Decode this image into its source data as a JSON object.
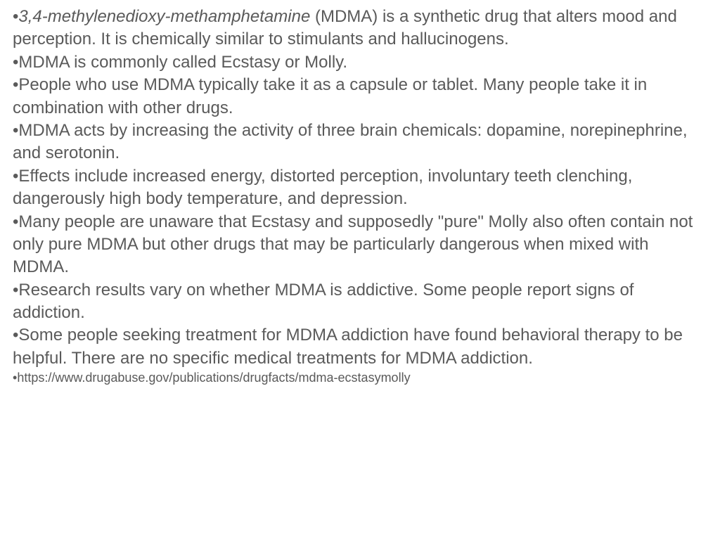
{
  "text_color": "#5a5a5a",
  "background_color": "#ffffff",
  "main_font_size": 24,
  "source_font_size": 18,
  "font_family": "Verdana, Geneva, sans-serif",
  "bullets": [
    {
      "italic_prefix": "3,4-methylenedioxy-methamphetamine",
      "rest": " (MDMA) is a synthetic drug that alters mood and perception. It is chemically similar to stimulants and hallucinogens."
    },
    {
      "text": "MDMA is commonly called Ecstasy or Molly."
    },
    {
      "text": "People who use MDMA typically take it as a capsule or tablet. Many people take it in combination with other drugs."
    },
    {
      "text": "MDMA acts by increasing the activity of three brain chemicals: dopamine, norepinephrine, and serotonin."
    },
    {
      "text": "Effects include increased energy, distorted perception, involuntary teeth clenching, dangerously high body temperature, and depression."
    },
    {
      "text": "Many people are unaware that Ecstasy and supposedly \"pure\" Molly also often contain not only pure MDMA but other drugs that may be particularly dangerous when mixed with MDMA."
    },
    {
      "text": "Research results vary on whether MDMA is addictive. Some people report signs of addiction."
    },
    {
      "text": "Some people seeking treatment for MDMA addiction have found behavioral therapy to be helpful. There are no specific medical treatments for MDMA addiction."
    }
  ],
  "source": "https://www.drugabuse.gov/publications/drugfacts/mdma-ecstasymolly",
  "bullet_char": "•"
}
